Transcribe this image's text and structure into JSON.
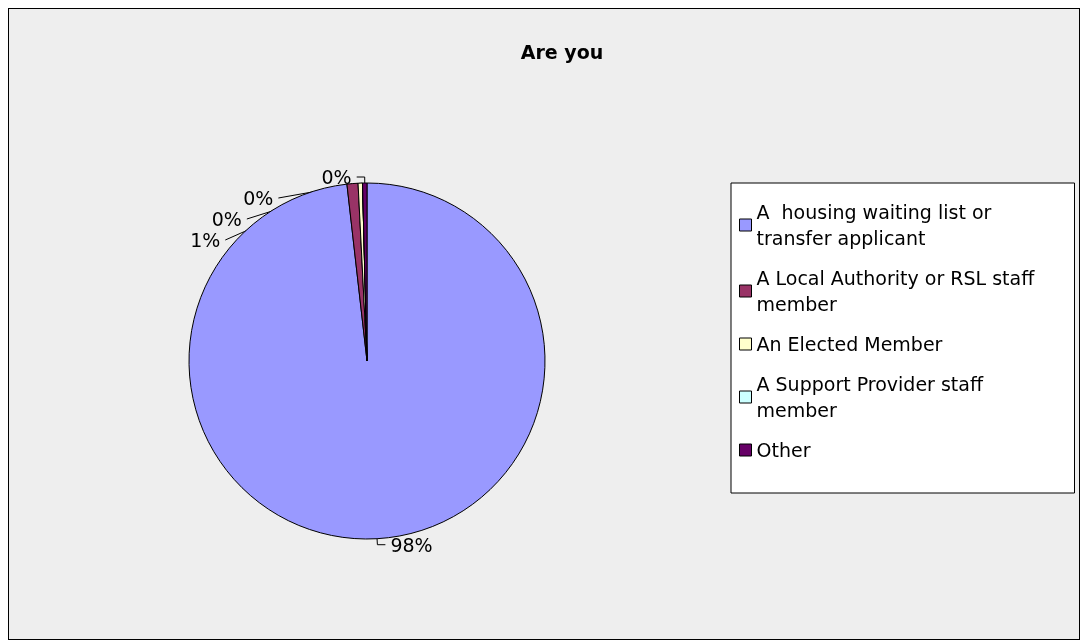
{
  "chart_data": {
    "type": "pie",
    "title": "Are you",
    "categories": [
      "A  housing waiting list or transfer applicant",
      "A Local Authority or RSL staff member",
      "An Elected Member",
      "A Support Provider staff member",
      "Other"
    ],
    "values": [
      98.2,
      1,
      0.4,
      0,
      0.4
    ],
    "colors": [
      "#9999ff",
      "#993366",
      "#ffffcc",
      "#ccffff",
      "#660066"
    ],
    "value_labels": [
      "98%",
      "1%",
      "0%",
      "0%",
      "0%"
    ],
    "legend": "right"
  }
}
